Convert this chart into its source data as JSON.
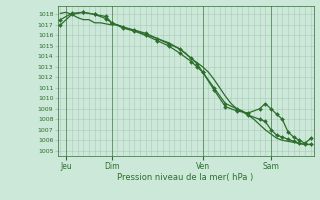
{
  "bg_color": "#cce8d8",
  "grid_color": "#aac8b8",
  "line_color": "#2d6e2d",
  "marker_color": "#2d6e2d",
  "ylabel_ticks": [
    1005,
    1006,
    1007,
    1008,
    1009,
    1010,
    1011,
    1012,
    1013,
    1014,
    1015,
    1016,
    1017,
    1018
  ],
  "ylim": [
    1004.5,
    1018.8
  ],
  "xlim": [
    -0.5,
    44.5
  ],
  "xlabel": "Pression niveau de la mer( hPa )",
  "day_labels": [
    "Jeu",
    "Dim",
    "Ven",
    "Sam"
  ],
  "day_positions": [
    1,
    9,
    25,
    37
  ],
  "line1_x": [
    0,
    1,
    2,
    3,
    4,
    5,
    6,
    7,
    8,
    9,
    10,
    11,
    12,
    13,
    14,
    15,
    16,
    17,
    18,
    19,
    20,
    21,
    22,
    23,
    24,
    25,
    26,
    27,
    28,
    29,
    30,
    31,
    32,
    33,
    34,
    35,
    36,
    37,
    38,
    39,
    40,
    41,
    42,
    43,
    44
  ],
  "line1_y": [
    1018.1,
    1018.2,
    1018.0,
    1017.7,
    1017.5,
    1017.5,
    1017.2,
    1017.2,
    1017.1,
    1017.0,
    1017.0,
    1016.8,
    1016.6,
    1016.5,
    1016.3,
    1016.0,
    1015.9,
    1015.7,
    1015.5,
    1015.3,
    1015.0,
    1014.7,
    1014.3,
    1013.8,
    1013.4,
    1013.0,
    1012.5,
    1011.8,
    1011.0,
    1010.2,
    1009.5,
    1009.0,
    1008.8,
    1008.4,
    1008.0,
    1007.5,
    1007.0,
    1006.6,
    1006.2,
    1006.0,
    1005.9,
    1005.8,
    1005.7,
    1005.6,
    1005.6
  ],
  "line2_x": [
    0,
    2,
    4,
    6,
    8,
    9,
    11,
    13,
    15,
    17,
    19,
    21,
    23,
    24,
    25,
    27,
    29,
    31,
    33,
    35,
    36,
    37,
    38,
    39,
    40,
    41,
    42,
    43,
    44
  ],
  "line2_y": [
    1017.0,
    1018.0,
    1018.2,
    1018.0,
    1017.6,
    1017.2,
    1016.7,
    1016.4,
    1016.0,
    1015.5,
    1015.0,
    1014.3,
    1013.5,
    1013.0,
    1012.5,
    1011.0,
    1009.5,
    1009.0,
    1008.4,
    1008.0,
    1007.8,
    1007.0,
    1006.5,
    1006.3,
    1006.1,
    1005.9,
    1005.7,
    1005.6,
    1005.6
  ],
  "line3_x": [
    0,
    2,
    4,
    6,
    8,
    9,
    11,
    13,
    15,
    17,
    19,
    21,
    23,
    24,
    25,
    27,
    29,
    31,
    33,
    35,
    36,
    37,
    38,
    39,
    40,
    41,
    42,
    43,
    44
  ],
  "line3_y": [
    1017.5,
    1018.1,
    1018.2,
    1018.0,
    1017.8,
    1017.2,
    1016.8,
    1016.5,
    1016.2,
    1015.7,
    1015.2,
    1014.7,
    1013.8,
    1013.3,
    1012.5,
    1010.8,
    1009.2,
    1008.8,
    1008.6,
    1009.0,
    1009.5,
    1009.0,
    1008.5,
    1008.0,
    1006.8,
    1006.3,
    1006.0,
    1005.7,
    1006.2
  ]
}
